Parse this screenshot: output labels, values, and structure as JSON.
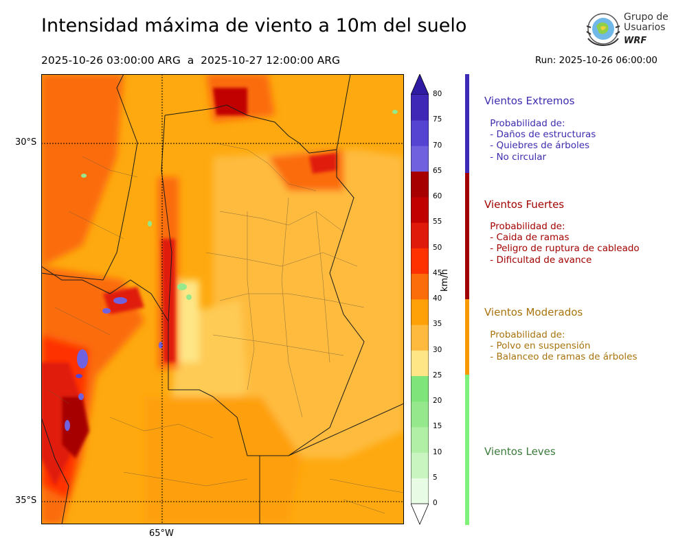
{
  "header": {
    "title": "Intensidad máxima de viento a 10m del suelo",
    "period": "2025-10-26 03:00:00 ARG  a  2025-10-27 12:00:00 ARG",
    "run": "Run: 2025-10-26 06:00:00"
  },
  "logo": {
    "line1": "Grupo de",
    "line2": "Usuarios",
    "line3": "WRF",
    "icon": "wrf-globe-logo-icon"
  },
  "map": {
    "lat_labels": [
      "30°S",
      "35°S"
    ],
    "lon_labels": [
      "65°W"
    ]
  },
  "colorbar": {
    "unit": "km/h",
    "ticks": [
      "0",
      "5",
      "10",
      "15",
      "20",
      "25",
      "30",
      "35",
      "40",
      "45",
      "50",
      "55",
      "60",
      "65",
      "70",
      "75",
      "80"
    ],
    "colors": [
      "#e8fbe4",
      "#c8f5c0",
      "#b1efa6",
      "#95e98c",
      "#7fe57a",
      "#fee585",
      "#feba3e",
      "#fea008",
      "#fb6c0a",
      "#fe3200",
      "#e01a0a",
      "#c10000",
      "#a70000",
      "#7062df",
      "#5544d1",
      "#3f28b6"
    ],
    "extend_max_color": "#2e1aa3",
    "extend_min_color": "#ffffff"
  },
  "categories": [
    {
      "title": "Vientos Extremos",
      "color": "#3d2bb0",
      "lines": " Probabilidad de:\n - Daños de estructuras\n - Quiebres de árboles\n - No circular"
    },
    {
      "title": "Vientos Fuertes",
      "color": "#a30000",
      "lines": " Probabilidad de:\n - Caida de ramas\n - Peligro de ruptura de cableado\n - Dificultad de avance"
    },
    {
      "title": "Vientos Moderados",
      "color": "#a8730c",
      "lines": " Probabilidad de:\n - Polvo en suspensión\n - Balanceo de ramas de árboles"
    },
    {
      "title": "Vientos Leves",
      "color": "#3a7a3a",
      "lines": ""
    }
  ],
  "band_colors": [
    "#3c2bb8",
    "#a20000",
    "#fb9a00",
    "#7ff27a"
  ]
}
